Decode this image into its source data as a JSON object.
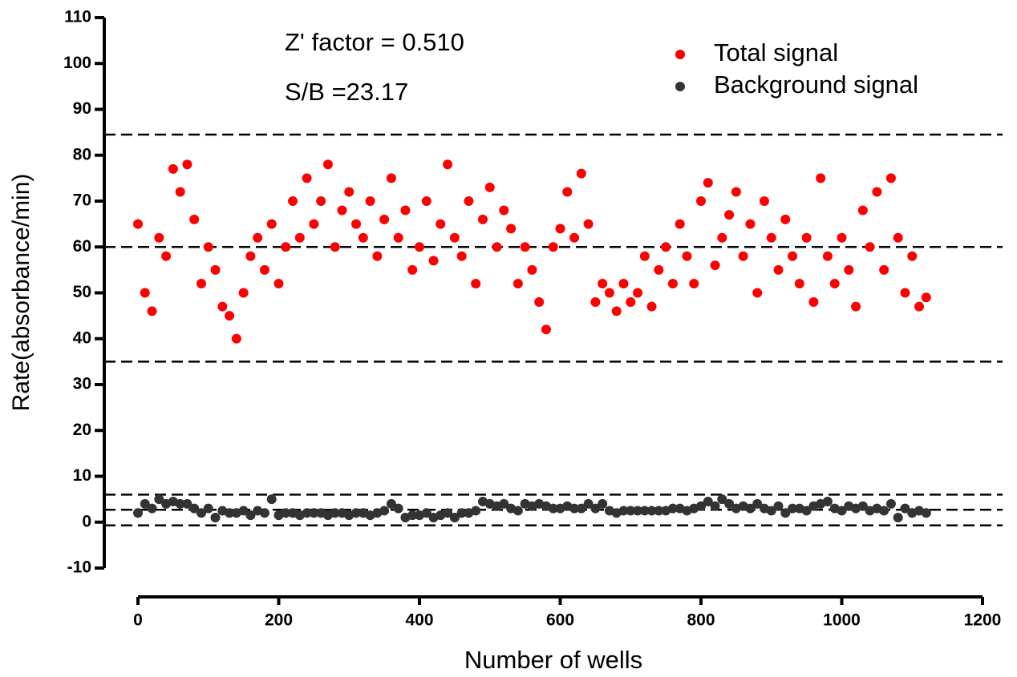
{
  "chart_data": {
    "type": "scatter",
    "x_label": "Number of wells",
    "y_label": "Rate(absorbance/min)",
    "annotations": [
      "Z' factor = 0.510",
      "S/B =23.17"
    ],
    "xlim": [
      0,
      1200
    ],
    "xticks": [
      0,
      200,
      400,
      600,
      800,
      1000,
      1200
    ],
    "ylim": [
      -10,
      110
    ],
    "yticks": [
      -10,
      0,
      10,
      20,
      30,
      40,
      50,
      60,
      70,
      80,
      90,
      100,
      110
    ],
    "hlines": [
      84.5,
      60,
      35,
      6,
      2.7,
      -0.7
    ],
    "legend": "upper right",
    "x": [
      0,
      10,
      20,
      30,
      40,
      50,
      60,
      70,
      80,
      90,
      100,
      110,
      120,
      130,
      140,
      150,
      160,
      170,
      180,
      190,
      200,
      210,
      220,
      230,
      240,
      250,
      260,
      270,
      280,
      290,
      300,
      310,
      320,
      330,
      340,
      350,
      360,
      370,
      380,
      390,
      400,
      410,
      420,
      430,
      440,
      450,
      460,
      470,
      480,
      490,
      500,
      510,
      520,
      530,
      540,
      550,
      560,
      570,
      580,
      590,
      600,
      610,
      620,
      630,
      640,
      650,
      660,
      670,
      680,
      690,
      700,
      710,
      720,
      730,
      740,
      750,
      760,
      770,
      780,
      790,
      800,
      810,
      820,
      830,
      840,
      850,
      860,
      870,
      880,
      890,
      900,
      910,
      920,
      930,
      940,
      950,
      960,
      970,
      980,
      990,
      1000,
      1010,
      1020,
      1030,
      1040,
      1050,
      1060,
      1070,
      1080,
      1090,
      1100,
      1110,
      1120
    ],
    "series": [
      {
        "name": "Total signal",
        "color": "#ff0000",
        "values": [
          65,
          50,
          46,
          62,
          58,
          77,
          72,
          78,
          66,
          52,
          60,
          55,
          47,
          45,
          40,
          50,
          58,
          62,
          55,
          65,
          52,
          60,
          70,
          62,
          75,
          65,
          70,
          78,
          60,
          68,
          72,
          65,
          62,
          70,
          58,
          66,
          75,
          62,
          68,
          55,
          60,
          70,
          57,
          65,
          78,
          62,
          58,
          70,
          52,
          66,
          73,
          60,
          68,
          64,
          52,
          60,
          55,
          48,
          42,
          60,
          64,
          72,
          62,
          76,
          65,
          48,
          52,
          50,
          46,
          52,
          48,
          50,
          58,
          47,
          55,
          60,
          52,
          65,
          58,
          52,
          70,
          74,
          56,
          62,
          67,
          72,
          58,
          65,
          50,
          70,
          62,
          55,
          66,
          58,
          52,
          62,
          48,
          75,
          58,
          52,
          62,
          55,
          47,
          68,
          60,
          72,
          55,
          75,
          62,
          50,
          58,
          47,
          49
        ]
      },
      {
        "name": "Background signal",
        "color": "#333333",
        "values": [
          2,
          4,
          3,
          5,
          4,
          4.5,
          4,
          4,
          3,
          2,
          3,
          1,
          2.5,
          2,
          2,
          2.5,
          1.5,
          2.5,
          2,
          5,
          1.5,
          2,
          2,
          1.5,
          2,
          2,
          2,
          1.5,
          2,
          2,
          1.5,
          2,
          2,
          1.5,
          2,
          2.5,
          4,
          3,
          1,
          1.5,
          1.5,
          2,
          1,
          1.5,
          2,
          1,
          2,
          2,
          2.5,
          4.5,
          4,
          3.5,
          4,
          3,
          2.5,
          4,
          3.5,
          4,
          3.5,
          3,
          3,
          3.5,
          3,
          3,
          4,
          3,
          4,
          2.5,
          2,
          2.5,
          2.5,
          2.5,
          2.5,
          2.5,
          2.5,
          2.5,
          3,
          3,
          2.5,
          3,
          3.5,
          4.5,
          3.5,
          5,
          4,
          3,
          3.5,
          3,
          4,
          3,
          2.5,
          3.5,
          2,
          3,
          3,
          2.5,
          3.5,
          4,
          4.5,
          3,
          2.5,
          3.5,
          3,
          3.5,
          2.5,
          3,
          2.5,
          4,
          1,
          3,
          2,
          2.5,
          2
        ]
      }
    ]
  }
}
